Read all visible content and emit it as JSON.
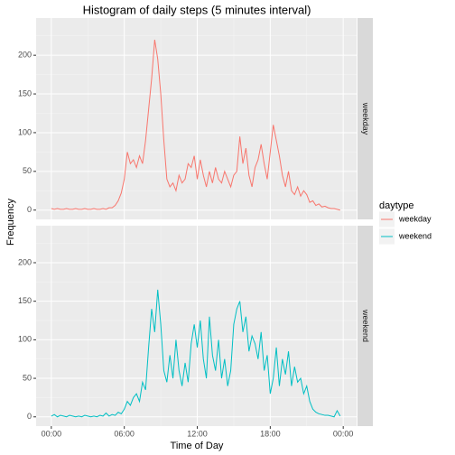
{
  "chart_data": {
    "type": "line",
    "title": "Histogram of daily steps (5 minutes interval)",
    "x_label": "Time of Day",
    "y_label": "Frequency",
    "legend_title": "daytype",
    "facets": [
      "weekday",
      "weekend"
    ],
    "x": [
      0,
      0.25,
      0.5,
      0.75,
      1,
      1.25,
      1.5,
      1.75,
      2,
      2.25,
      2.5,
      2.75,
      3,
      3.25,
      3.5,
      3.75,
      4,
      4.25,
      4.5,
      4.75,
      5,
      5.25,
      5.5,
      5.75,
      6,
      6.25,
      6.5,
      6.75,
      7,
      7.25,
      7.5,
      7.75,
      8,
      8.25,
      8.5,
      8.75,
      9,
      9.25,
      9.5,
      9.75,
      10,
      10.25,
      10.5,
      10.75,
      11,
      11.25,
      11.5,
      11.75,
      12,
      12.25,
      12.5,
      12.75,
      13,
      13.25,
      13.5,
      13.75,
      14,
      14.25,
      14.5,
      14.75,
      15,
      15.25,
      15.5,
      15.75,
      16,
      16.25,
      16.5,
      16.75,
      17,
      17.25,
      17.5,
      17.75,
      18,
      18.25,
      18.5,
      18.75,
      19,
      19.25,
      19.5,
      19.75,
      20,
      20.25,
      20.5,
      20.75,
      21,
      21.25,
      21.5,
      21.75,
      22,
      22.25,
      22.5,
      22.75,
      23,
      23.25,
      23.5,
      23.75
    ],
    "series": [
      {
        "name": "weekday",
        "color": "#f8766d",
        "values": [
          2,
          1,
          2,
          1,
          1,
          2,
          1,
          1,
          2,
          1,
          1,
          2,
          1,
          1,
          2,
          1,
          1,
          2,
          1,
          3,
          3,
          6,
          12,
          22,
          40,
          75,
          60,
          65,
          55,
          70,
          60,
          90,
          130,
          170,
          220,
          195,
          150,
          90,
          40,
          30,
          35,
          25,
          45,
          35,
          40,
          60,
          55,
          70,
          40,
          65,
          45,
          30,
          50,
          35,
          55,
          40,
          35,
          50,
          40,
          30,
          45,
          50,
          95,
          60,
          80,
          45,
          30,
          55,
          65,
          85,
          60,
          40,
          75,
          110,
          90,
          70,
          45,
          30,
          50,
          25,
          20,
          30,
          18,
          25,
          20,
          10,
          12,
          6,
          8,
          4,
          5,
          3,
          2,
          2,
          1,
          0
        ]
      },
      {
        "name": "weekend",
        "color": "#00bfc4",
        "values": [
          1,
          3,
          0,
          2,
          1,
          0,
          2,
          1,
          0,
          1,
          0,
          2,
          1,
          0,
          1,
          0,
          2,
          1,
          5,
          1,
          3,
          2,
          6,
          4,
          10,
          20,
          15,
          25,
          30,
          20,
          45,
          35,
          90,
          140,
          110,
          165,
          120,
          60,
          45,
          80,
          50,
          100,
          60,
          40,
          70,
          45,
          95,
          120,
          90,
          125,
          75,
          50,
          130,
          80,
          60,
          100,
          50,
          75,
          40,
          60,
          120,
          140,
          150,
          110,
          130,
          85,
          105,
          95,
          75,
          110,
          60,
          80,
          30,
          50,
          90,
          40,
          75,
          55,
          85,
          40,
          65,
          45,
          50,
          30,
          40,
          20,
          10,
          6,
          4,
          3,
          2,
          2,
          1,
          0,
          8,
          1
        ]
      }
    ],
    "xlim": [
      -1.25,
      25.1
    ],
    "xticks": [
      {
        "value": 0,
        "label": "00:00"
      },
      {
        "value": 6,
        "label": "06:00"
      },
      {
        "value": 12,
        "label": "12:00"
      },
      {
        "value": 18,
        "label": "18:00"
      },
      {
        "value": 24,
        "label": "00:00"
      }
    ],
    "ylim": [
      -12,
      248
    ],
    "yticks": [
      0,
      50,
      100,
      150,
      200
    ],
    "grid": true
  }
}
